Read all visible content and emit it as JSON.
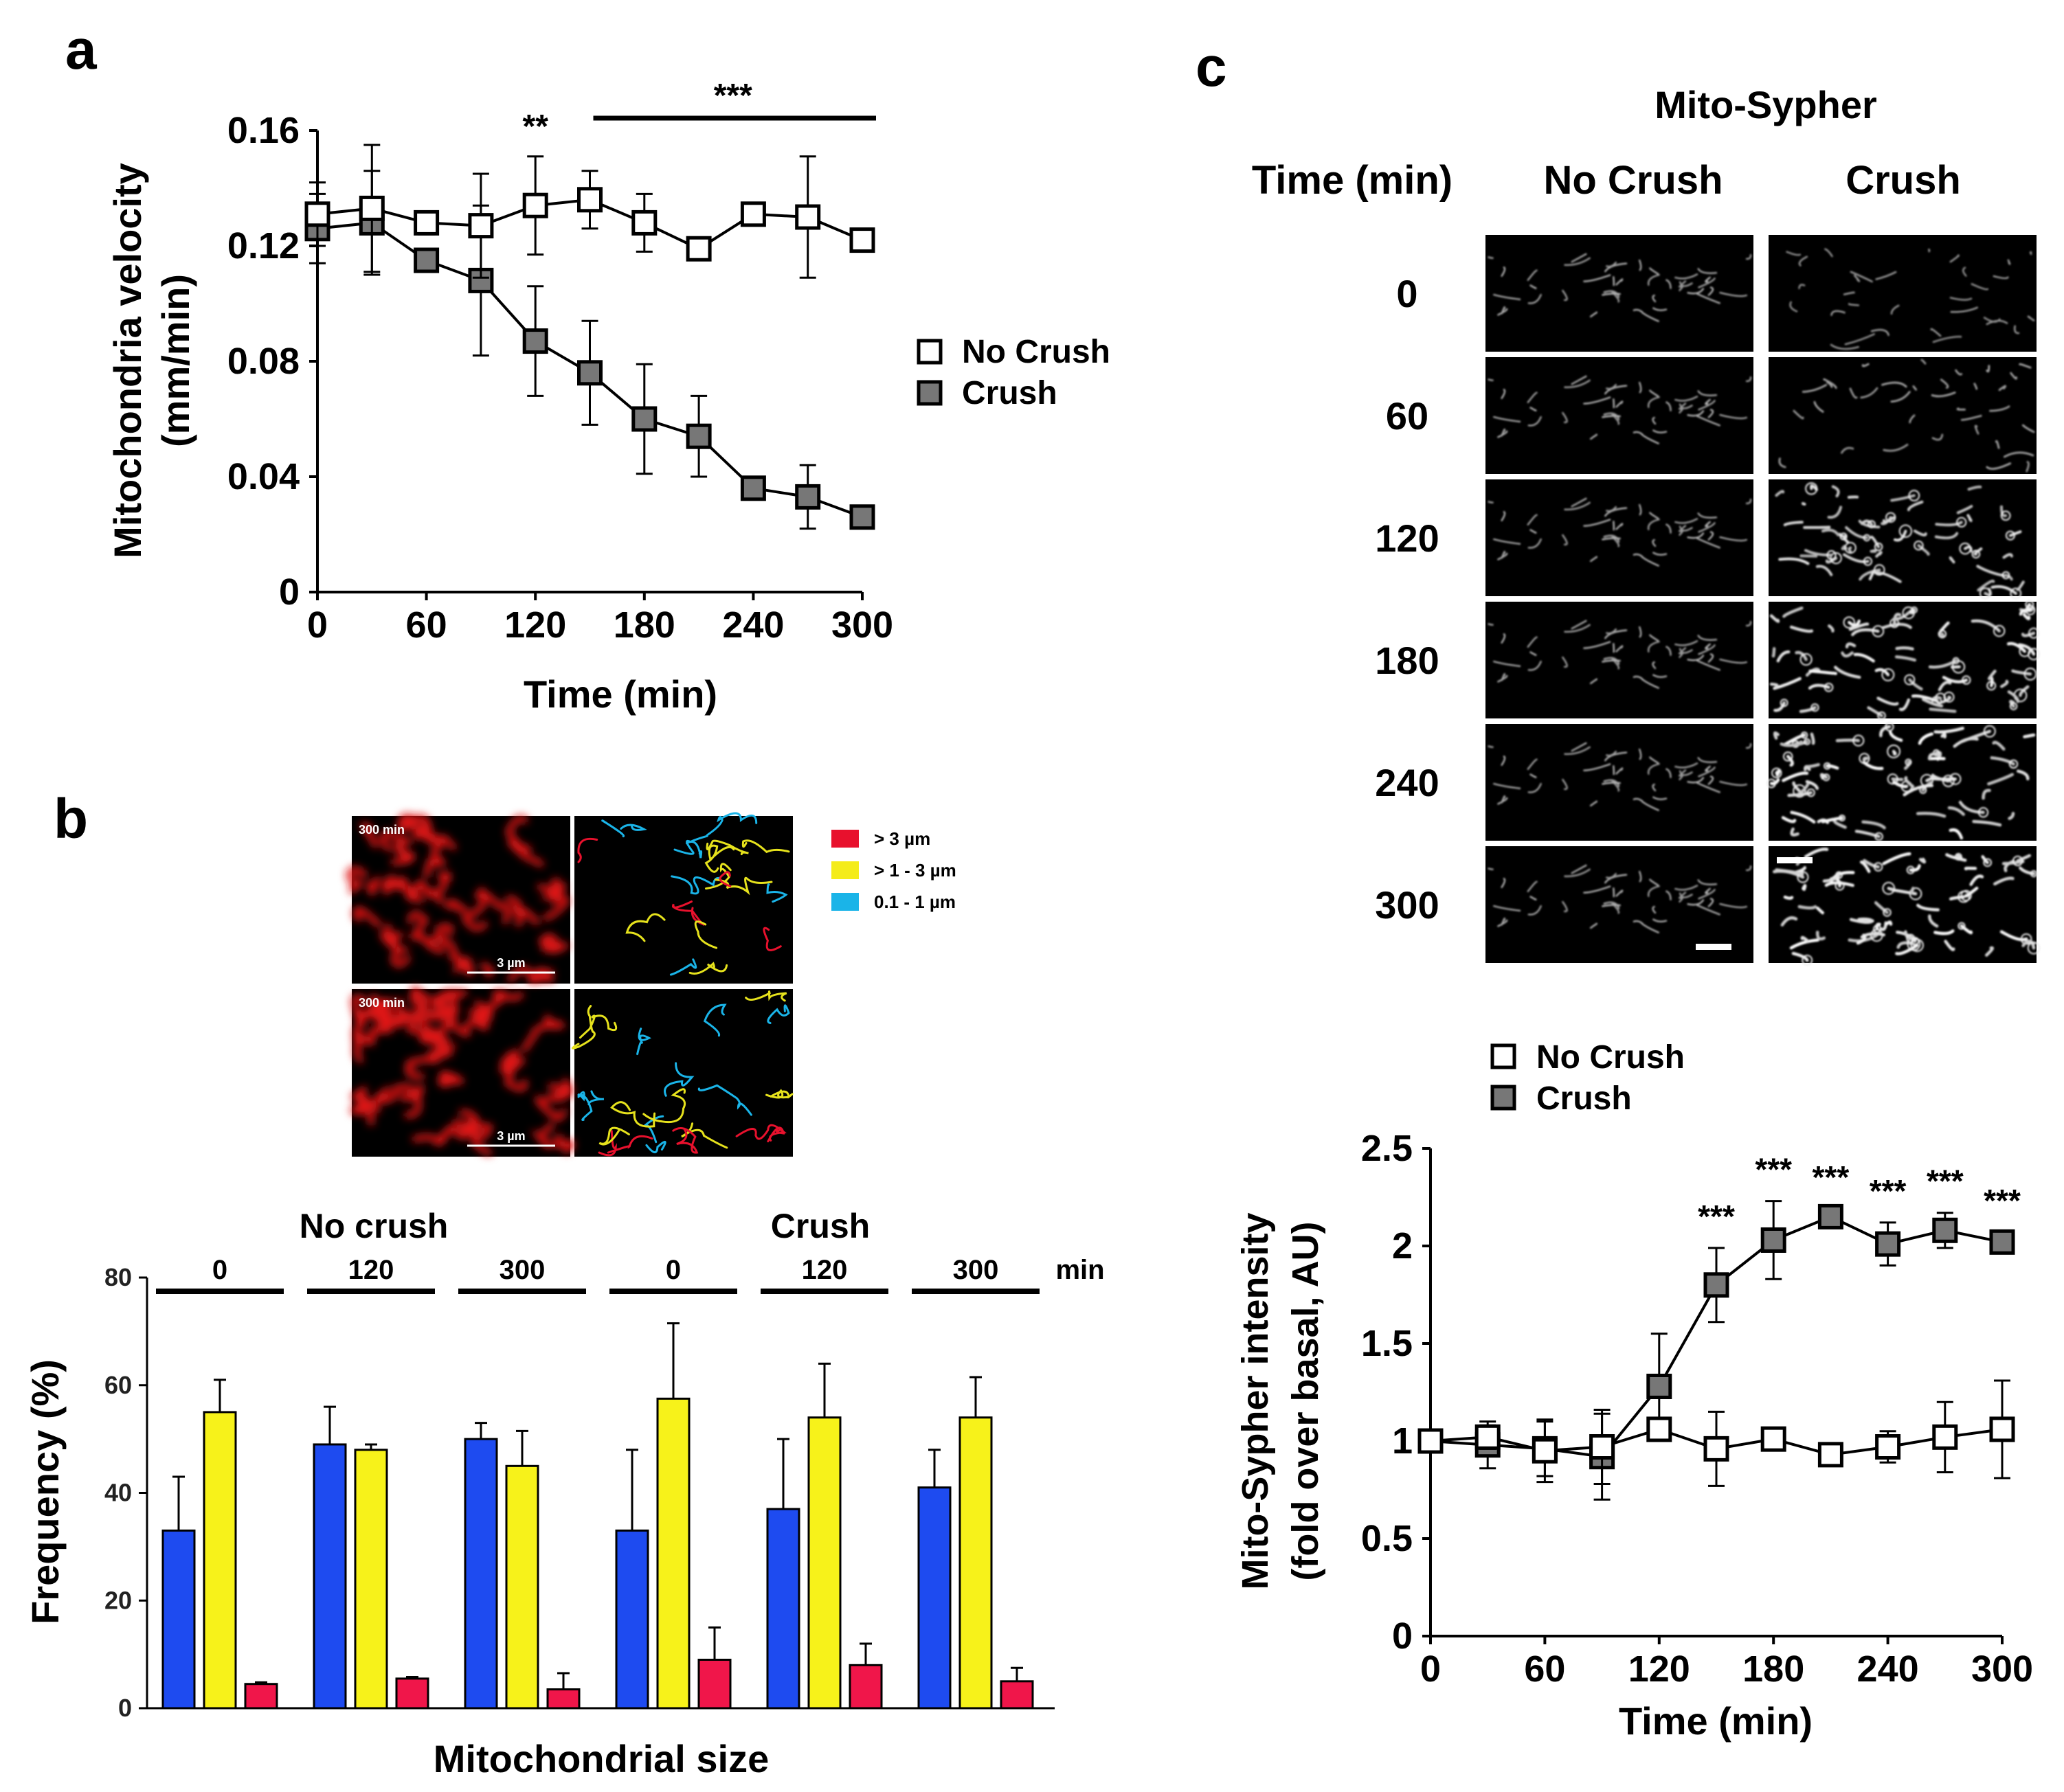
{
  "panel_labels": {
    "a": "a",
    "b": "b",
    "c": "c"
  },
  "legend_line": {
    "no_crush": "No Crush",
    "crush": "Crush"
  },
  "chart_data": [
    {
      "id": "panel-a",
      "type": "line",
      "title": "",
      "xlabel": "Time (min)",
      "ylabel_1": "Mitochondria velocity",
      "ylabel_2": "(mm/min)",
      "xlim": [
        0,
        300
      ],
      "ylim": [
        0,
        0.16
      ],
      "xticks": [
        0,
        60,
        120,
        180,
        240,
        300
      ],
      "xtick_labels": [
        "0",
        "60",
        "120",
        "180",
        "240",
        "300"
      ],
      "yticks": [
        0,
        0.04,
        0.08,
        0.12,
        0.16
      ],
      "ytick_labels": [
        "0",
        "0.04",
        "0.08",
        "0.12",
        "0.16"
      ],
      "annotations": {
        "sig_120": "**",
        "sig_bar": "***",
        "sig_bar_range": [
          150,
          300
        ]
      },
      "series": [
        {
          "name": "No Crush",
          "x": [
            0,
            30,
            60,
            90,
            120,
            150,
            180,
            210,
            240,
            270,
            300
          ],
          "y": [
            0.131,
            0.133,
            0.128,
            0.127,
            0.134,
            0.136,
            0.128,
            0.119,
            0.131,
            0.13,
            0.122
          ],
          "err": [
            0.011,
            0.022,
            0.004,
            0.018,
            0.017,
            0.01,
            0.01,
            0.002,
            0.002,
            0.021,
            0.002
          ]
        },
        {
          "name": "Crush",
          "x": [
            0,
            30,
            60,
            90,
            120,
            150,
            180,
            210,
            240,
            270,
            300
          ],
          "y": [
            0.126,
            0.128,
            0.115,
            0.108,
            0.087,
            0.076,
            0.06,
            0.054,
            0.036,
            0.033,
            0.026
          ],
          "err": [
            0.012,
            0.018,
            0.004,
            0.026,
            0.019,
            0.018,
            0.019,
            0.014,
            0.003,
            0.011,
            0.002
          ]
        }
      ]
    },
    {
      "id": "panel-b",
      "type": "bar",
      "xlabel": "Mitochondrial size",
      "ylabel": "Frequency (%)",
      "ylim": [
        0,
        80
      ],
      "yticks": [
        0,
        20,
        40,
        60,
        80
      ],
      "ytick_labels": [
        "0",
        "20",
        "40",
        "60",
        "80"
      ],
      "group_headers": [
        "No crush",
        "Crush"
      ],
      "unit_label": "min",
      "groups": [
        "0",
        "120",
        "300",
        "0",
        "120",
        "300"
      ],
      "legend": [
        {
          "label": "> 3 µm",
          "color": "#e8112d"
        },
        {
          "label": "> 1 - 3 µm",
          "color": "#f4ec1a"
        },
        {
          "label": "0.1 - 1 µm",
          "color": "#1ab4e8"
        }
      ],
      "series": [
        {
          "name": "0.1 - 1 µm",
          "color": "#1e4bf0",
          "values": [
            33,
            49,
            50,
            33,
            37,
            41
          ],
          "err": [
            10,
            7,
            3,
            15,
            13,
            7
          ]
        },
        {
          "name": "> 1 - 3 µm",
          "color": "#f7f21a",
          "values": [
            55,
            48,
            45,
            57.5,
            54,
            54
          ],
          "err": [
            6,
            1,
            6.5,
            14,
            10,
            7.5
          ]
        },
        {
          "name": "> 3 µm",
          "color": "#f0164a",
          "values": [
            4.5,
            5.5,
            3.5,
            9,
            8,
            5
          ],
          "err": [
            0.3,
            0.3,
            3,
            6,
            4,
            2.5
          ]
        }
      ]
    },
    {
      "id": "panel-c",
      "type": "line",
      "xlabel": "Time (min)",
      "ylabel_1": "Mito-Sypher intensity",
      "ylabel_2": "(fold over basal, AU)",
      "xlim": [
        0,
        300
      ],
      "ylim": [
        0,
        2.5
      ],
      "xticks": [
        0,
        60,
        120,
        180,
        240,
        300
      ],
      "xtick_labels": [
        "0",
        "60",
        "120",
        "180",
        "240",
        "300"
      ],
      "yticks": [
        0,
        0.5,
        1,
        1.5,
        2,
        2.5
      ],
      "ytick_labels": [
        "0",
        "0.5",
        "1",
        "1.5",
        "2",
        "2.5"
      ],
      "sig_marks": [
        {
          "x": 150,
          "label": "***"
        },
        {
          "x": 180,
          "label": "***"
        },
        {
          "x": 210,
          "label": "***"
        },
        {
          "x": 240,
          "label": "***"
        },
        {
          "x": 270,
          "label": "***"
        },
        {
          "x": 300,
          "label": "***"
        }
      ],
      "series": [
        {
          "name": "No Crush",
          "x": [
            0,
            30,
            60,
            90,
            120,
            150,
            180,
            210,
            240,
            270,
            300
          ],
          "y": [
            1.0,
            1.02,
            0.95,
            0.97,
            1.06,
            0.96,
            1.01,
            0.93,
            0.97,
            1.02,
            1.06
          ],
          "err": [
            0.04,
            0.06,
            0.16,
            0.19,
            0.05,
            0.19,
            0.04,
            0.04,
            0.08,
            0.18,
            0.25
          ]
        },
        {
          "name": "Crush",
          "x": [
            0,
            30,
            60,
            90,
            120,
            150,
            180,
            210,
            240,
            270,
            300
          ],
          "y": [
            1.0,
            0.98,
            0.96,
            0.92,
            1.28,
            1.8,
            2.03,
            2.15,
            2.01,
            2.08,
            2.02
          ],
          "err": [
            0.03,
            0.12,
            0.14,
            0.22,
            0.27,
            0.19,
            0.2,
            0.04,
            0.11,
            0.09,
            0.05
          ]
        }
      ]
    }
  ],
  "micro_b": {
    "time_label": "300 min",
    "scale_label": "3 µm"
  },
  "mito": {
    "title": "Mito-Sypher",
    "time_header": "Time (min)",
    "col_no_crush": "No Crush",
    "col_crush": "Crush",
    "rows": [
      "0",
      "60",
      "120",
      "180",
      "240",
      "300"
    ],
    "crush_brightness": [
      0.25,
      0.35,
      0.8,
      0.95,
      1.0,
      1.0
    ]
  }
}
